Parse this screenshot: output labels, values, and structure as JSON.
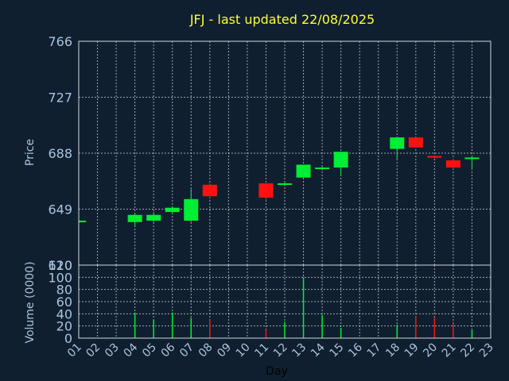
{
  "colors": {
    "background": "#0f1f30",
    "up": "#00ee33",
    "down": "#ff1111",
    "title": "#ffff33",
    "ticks": "#a9c4dc",
    "grid": "#ffffff"
  },
  "chart_data": [
    {
      "type": "candlestick",
      "title": "JFJ - last updated 22/08/2025",
      "ylabel": "Price",
      "ylim": [
        610,
        766
      ],
      "yticks": [
        "766",
        "727",
        "688",
        "649",
        "610"
      ],
      "x": [
        "01",
        "02",
        "03",
        "04",
        "05",
        "06",
        "07",
        "08",
        "09",
        "10",
        "11",
        "12",
        "13",
        "14",
        "15",
        "16",
        "17",
        "18",
        "19",
        "20",
        "21",
        "22",
        "23"
      ],
      "candles": [
        {
          "day": "01",
          "open": 640,
          "close": 641,
          "high": 641,
          "low": 640
        },
        {
          "day": "04",
          "open": 640,
          "close": 645,
          "high": 646,
          "low": 637
        },
        {
          "day": "05",
          "open": 641,
          "close": 645,
          "high": 647,
          "low": 640
        },
        {
          "day": "06",
          "open": 647,
          "close": 650,
          "high": 651,
          "low": 646
        },
        {
          "day": "07",
          "open": 641,
          "close": 656,
          "high": 663,
          "low": 640
        },
        {
          "day": "08",
          "open": 666,
          "close": 658,
          "high": 667,
          "low": 656
        },
        {
          "day": "11",
          "open": 667,
          "close": 657,
          "high": 667,
          "low": 655
        },
        {
          "day": "12",
          "open": 666,
          "close": 667,
          "high": 668,
          "low": 665
        },
        {
          "day": "13",
          "open": 671,
          "close": 680,
          "high": 680,
          "low": 671
        },
        {
          "day": "14",
          "open": 677,
          "close": 678,
          "high": 679,
          "low": 676
        },
        {
          "day": "15",
          "open": 678,
          "close": 689,
          "high": 689,
          "low": 672
        },
        {
          "day": "18",
          "open": 691,
          "close": 699,
          "high": 699,
          "low": 684
        },
        {
          "day": "19",
          "open": 699,
          "close": 692,
          "high": 699,
          "low": 692
        },
        {
          "day": "20",
          "open": 686,
          "close": 685,
          "high": 686,
          "low": 684
        },
        {
          "day": "21",
          "open": 683,
          "close": 678,
          "high": 684,
          "low": 677
        },
        {
          "day": "22",
          "open": 684,
          "close": 685,
          "high": 686,
          "low": 677
        }
      ]
    },
    {
      "type": "bar",
      "ylabel": "Volume (0000)",
      "xlabel": "Day",
      "ylim": [
        0,
        120
      ],
      "yticks": [
        "120",
        "100",
        "80",
        "60",
        "40",
        "20",
        "0"
      ],
      "x": [
        "01",
        "02",
        "03",
        "04",
        "05",
        "06",
        "07",
        "08",
        "09",
        "10",
        "11",
        "12",
        "13",
        "14",
        "15",
        "16",
        "17",
        "18",
        "19",
        "20",
        "21",
        "22",
        "23"
      ],
      "bars": [
        {
          "day": "04",
          "value": 42,
          "dir": "up"
        },
        {
          "day": "05",
          "value": 30,
          "dir": "up"
        },
        {
          "day": "06",
          "value": 42,
          "dir": "up"
        },
        {
          "day": "07",
          "value": 33,
          "dir": "up"
        },
        {
          "day": "08",
          "value": 30,
          "dir": "down"
        },
        {
          "day": "11",
          "value": 14,
          "dir": "down"
        },
        {
          "day": "12",
          "value": 27,
          "dir": "up"
        },
        {
          "day": "13",
          "value": 100,
          "dir": "up"
        },
        {
          "day": "14",
          "value": 38,
          "dir": "up"
        },
        {
          "day": "15",
          "value": 17,
          "dir": "up"
        },
        {
          "day": "18",
          "value": 22,
          "dir": "up"
        },
        {
          "day": "19",
          "value": 36,
          "dir": "down"
        },
        {
          "day": "20",
          "value": 33,
          "dir": "down"
        },
        {
          "day": "21",
          "value": 25,
          "dir": "down"
        },
        {
          "day": "22",
          "value": 13,
          "dir": "up"
        }
      ]
    }
  ]
}
